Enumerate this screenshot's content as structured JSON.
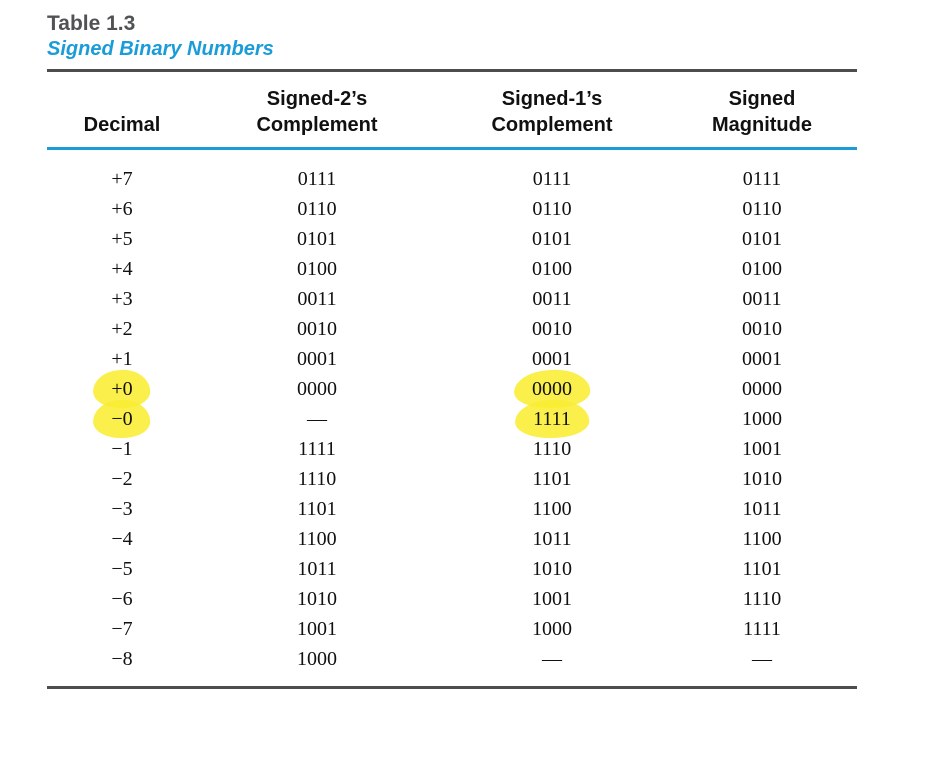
{
  "page": {
    "background": "#ffffff"
  },
  "table": {
    "label": "Table 1.3",
    "caption": "Signed Binary Numbers",
    "accent_color": "#1a9cd8",
    "rule_color": "#4c4d4f",
    "highlight_color": "#f9ed32",
    "columns": [
      {
        "line1": "",
        "line2": "Decimal"
      },
      {
        "line1": "Signed-2’s",
        "line2": "Complement"
      },
      {
        "line1": "Signed-1’s",
        "line2": "Complement"
      },
      {
        "line1": "Signed",
        "line2": "Magnitude"
      }
    ],
    "rows": [
      [
        "+7",
        "0111",
        "0111",
        "0111"
      ],
      [
        "+6",
        "0110",
        "0110",
        "0110"
      ],
      [
        "+5",
        "0101",
        "0101",
        "0101"
      ],
      [
        "+4",
        "0100",
        "0100",
        "0100"
      ],
      [
        "+3",
        "0011",
        "0011",
        "0011"
      ],
      [
        "+2",
        "0010",
        "0010",
        "0010"
      ],
      [
        "+1",
        "0001",
        "0001",
        "0001"
      ],
      [
        "+0",
        "0000",
        "0000",
        "0000"
      ],
      [
        "−0",
        "—",
        "1111",
        "1000"
      ],
      [
        "−1",
        "1111",
        "1110",
        "1001"
      ],
      [
        "−2",
        "1110",
        "1101",
        "1010"
      ],
      [
        "−3",
        "1101",
        "1100",
        "1011"
      ],
      [
        "−4",
        "1100",
        "1011",
        "1100"
      ],
      [
        "−5",
        "1011",
        "1010",
        "1101"
      ],
      [
        "−6",
        "1010",
        "1001",
        "1110"
      ],
      [
        "−7",
        "1001",
        "1000",
        "1111"
      ],
      [
        "−8",
        "1000",
        "—",
        "—"
      ]
    ],
    "highlighted_cells": [
      [
        7,
        0
      ],
      [
        8,
        0
      ],
      [
        7,
        2
      ],
      [
        8,
        2
      ]
    ]
  }
}
